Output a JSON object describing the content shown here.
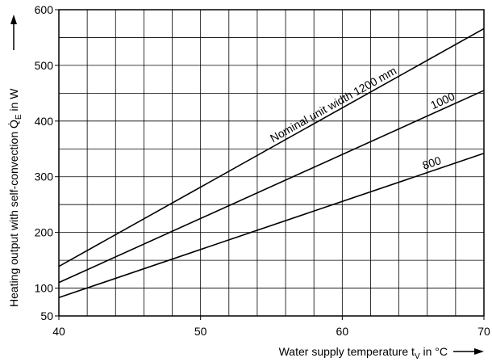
{
  "chart_data": {
    "type": "line",
    "x_label": {
      "text": "Water supply temperature t",
      "sub": "V",
      "rest": " in °C"
    },
    "y_label": {
      "text": "Heating output with self-convection Q̇",
      "sub": "E",
      "rest": " in W"
    },
    "xlim": [
      40,
      70
    ],
    "xticks": [
      40,
      50,
      60,
      70
    ],
    "xminor": [
      42,
      44,
      46,
      48,
      52,
      54,
      56,
      58,
      62,
      64,
      66,
      68
    ],
    "ylim": [
      50,
      600
    ],
    "yticks": [
      50,
      100,
      200,
      300,
      400,
      500,
      600
    ],
    "yminor": [
      150,
      250,
      350,
      450,
      550
    ],
    "grid": true,
    "series": [
      {
        "name": "Nominal unit width 1200 mm",
        "color": "#000000",
        "x": [
          40,
          70
        ],
        "values": [
          139,
          566
        ]
      },
      {
        "name": "1000",
        "color": "#000000",
        "x": [
          40,
          70
        ],
        "values": [
          110,
          455
        ]
      },
      {
        "name": "800",
        "color": "#000000",
        "x": [
          40,
          70
        ],
        "values": [
          83,
          342
        ]
      }
    ]
  }
}
